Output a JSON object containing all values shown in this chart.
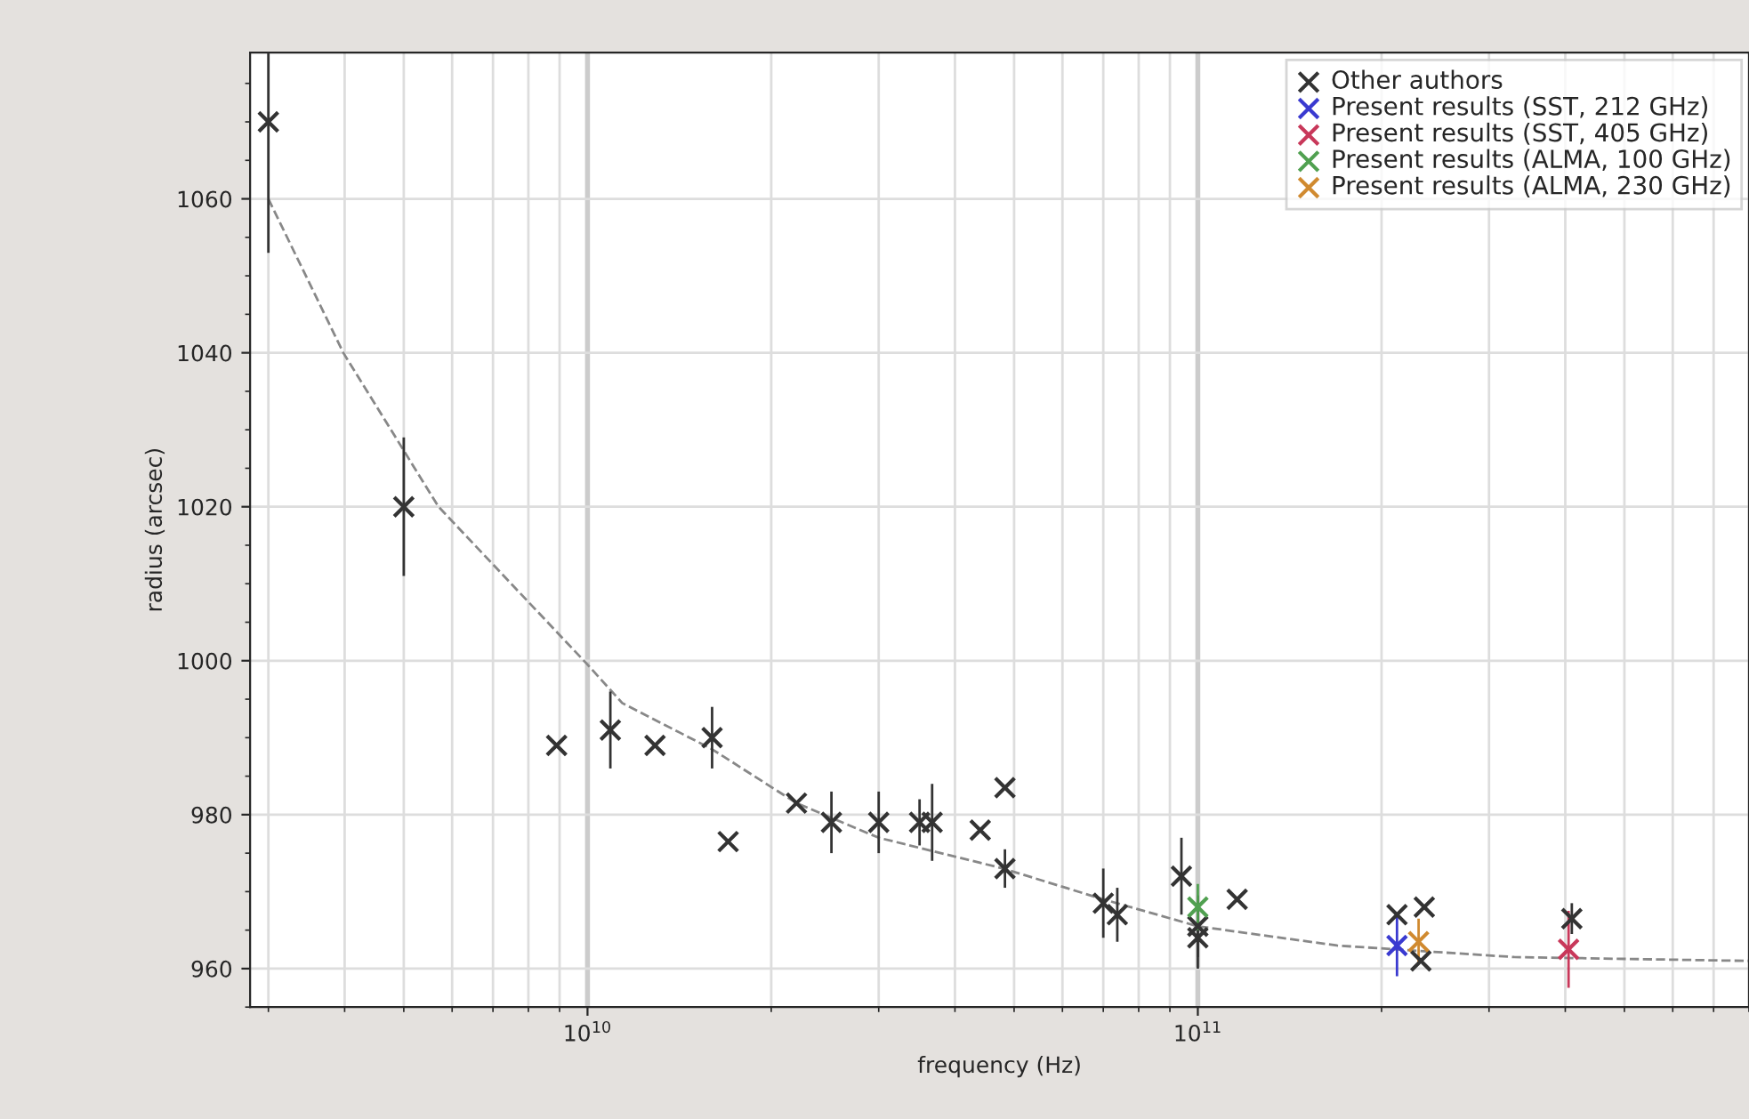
{
  "chart_data": {
    "type": "scatter",
    "xlabel": "frequency (Hz)",
    "ylabel": "radius (arcsec)",
    "log": "x",
    "xlim": [
      2800000000.0,
      800000000000.0
    ],
    "ylim": [
      955,
      1079
    ],
    "xticks": [
      {
        "value": 10000000000.0,
        "label": "10$^{10}$"
      },
      {
        "value": 100000000000.0,
        "label": "10$^{11}$"
      }
    ],
    "yticks": [
      960,
      980,
      1000,
      1020,
      1040,
      1060
    ],
    "grid": true,
    "legend": "top right",
    "marker": "cross",
    "series": [
      {
        "name": "Other authors",
        "color": "#333333",
        "x": [
          3000000000.0,
          5000000000.0,
          8900000000.0,
          10900000000.0,
          12900000000.0,
          16000000000.0,
          17000000000.0,
          22000000000.0,
          25100000000.0,
          30000000000.0,
          35000000000.0,
          36700000000.0,
          44000000000.0,
          48300000000.0,
          48300000000.0,
          70000000000.0,
          73800000000.0,
          94000000000.0,
          100000000000.0,
          100000000000.0,
          116000000000.0,
          212000000000.0,
          235000000000.0,
          232000000000.0,
          410000000000.0
        ],
        "values": [
          1070,
          1020,
          989,
          991,
          989,
          990,
          976.5,
          981.5,
          979,
          979,
          979,
          979,
          978,
          983.5,
          973,
          968.5,
          967,
          972,
          965.5,
          964,
          969,
          967,
          968,
          961,
          966.5
        ],
        "errors": [
          [
            1053,
            1079
          ],
          9,
          null,
          5,
          null,
          4,
          null,
          null,
          4,
          4,
          3,
          5,
          null,
          null,
          2.5,
          4.5,
          3.5,
          5,
          4,
          4,
          null,
          null,
          null,
          null,
          2
        ]
      },
      {
        "name": "Present results (SST, 212 GHz)",
        "color": "#3a3ad0",
        "x": [
          212000000000.0
        ],
        "values": [
          963
        ],
        "errors": [
          4
        ]
      },
      {
        "name": "Present results (SST, 405 GHz)",
        "color": "#c8385a",
        "x": [
          405000000000.0
        ],
        "values": [
          962.5
        ],
        "errors": [
          5
        ]
      },
      {
        "name": "Present results (ALMA, 100 GHz)",
        "color": "#50a050",
        "x": [
          100000000000.0
        ],
        "values": [
          968
        ],
        "errors": [
          3
        ]
      },
      {
        "name": "Present results (ALMA, 230 GHz)",
        "color": "#d08a30",
        "x": [
          230000000000.0
        ],
        "values": [
          963.5
        ],
        "errors": [
          3
        ]
      },
      {
        "type": "line",
        "marker": "none",
        "line_style": "dashed",
        "color": "#888888",
        "x": [
          3000000000.0,
          3980000000.0,
          5700000000.0,
          10000000000.0,
          11400000000.0,
          16000000000.0,
          22000000000.0,
          30000000000.0,
          48000000000.0,
          70000000000.0,
          100000000000.0,
          169000000000.0,
          330000000000.0,
          800000000000.0
        ],
        "values": [
          1060,
          1040,
          1020,
          999.5,
          994.5,
          988.5,
          981.5,
          977,
          973,
          969,
          965.5,
          963,
          961.5,
          961
        ]
      }
    ]
  }
}
